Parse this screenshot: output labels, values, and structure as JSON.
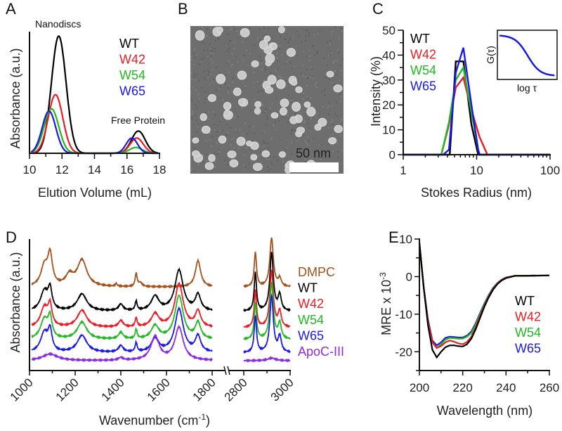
{
  "panel_letters": [
    "A",
    "B",
    "C",
    "D",
    "E"
  ],
  "micrograph": {
    "scale_bar_label": "50 nm"
  },
  "chart_data": [
    {
      "panel": "A",
      "type": "line",
      "xlabel": "Elution Volume (mL)",
      "ylabel": "Absorbance (a.u.)",
      "xlim": [
        10,
        18
      ],
      "ylim": [
        0,
        1.05
      ],
      "xticks": [
        10,
        12,
        14,
        16,
        18
      ],
      "annotations": [
        "Nanodiscs",
        "Free Protein"
      ],
      "legend_position": "top-right",
      "series": [
        {
          "name": "WT",
          "color": "#000000",
          "peaks": [
            [
              11.8,
              1.0,
              0.45
            ],
            [
              16.7,
              0.19,
              0.42
            ]
          ]
        },
        {
          "name": "W42",
          "color": "#ee1c24",
          "peaks": [
            [
              11.6,
              0.5,
              0.45
            ],
            [
              16.6,
              0.13,
              0.4
            ]
          ]
        },
        {
          "name": "W54",
          "color": "#22b922",
          "peaks": [
            [
              11.35,
              0.38,
              0.45
            ],
            [
              16.55,
              0.05,
              0.4
            ]
          ]
        },
        {
          "name": "W65",
          "color": "#1a1ae6",
          "peaks": [
            [
              11.2,
              0.36,
              0.42
            ],
            [
              16.3,
              0.13,
              0.35
            ]
          ]
        }
      ]
    },
    {
      "panel": "C",
      "type": "line",
      "xlabel": "Stokes Radius (nm)",
      "ylabel": "Intensity (%)",
      "xscale": "log",
      "xlim": [
        1,
        100
      ],
      "ylim": [
        0,
        50
      ],
      "xticks": [
        1,
        10,
        100
      ],
      "yticks": [
        0,
        10,
        20,
        30,
        40,
        50
      ],
      "legend_position": "top-left",
      "inset": {
        "ylabel": "G(τ)",
        "xlabel": "log τ",
        "color": "#1a1ae6"
      },
      "series": [
        {
          "name": "WT",
          "color": "#000000",
          "points": [
            [
              1,
              0
            ],
            [
              4.3,
              0
            ],
            [
              5.2,
              37.5
            ],
            [
              6.6,
              37.5
            ],
            [
              8.5,
              12
            ],
            [
              10.5,
              0
            ],
            [
              100,
              0
            ]
          ]
        },
        {
          "name": "W42",
          "color": "#ee1c24",
          "points": [
            [
              1,
              0
            ],
            [
              3.3,
              0
            ],
            [
              4.2,
              12
            ],
            [
              5.2,
              27
            ],
            [
              6.6,
              31
            ],
            [
              8.5,
              18
            ],
            [
              11,
              7
            ],
            [
              14,
              0
            ],
            [
              100,
              0
            ]
          ]
        },
        {
          "name": "W54",
          "color": "#22b922",
          "points": [
            [
              1,
              0
            ],
            [
              3.3,
              0
            ],
            [
              4.2,
              13
            ],
            [
              5.2,
              30
            ],
            [
              6.6,
              35
            ],
            [
              8.5,
              17
            ],
            [
              10.5,
              2
            ],
            [
              11,
              0
            ],
            [
              100,
              0
            ]
          ]
        },
        {
          "name": "W65",
          "color": "#1a1ae6",
          "points": [
            [
              1,
              0
            ],
            [
              3.5,
              0
            ],
            [
              4.2,
              2
            ],
            [
              5.2,
              33
            ],
            [
              6.6,
              43
            ],
            [
              8.5,
              20
            ],
            [
              10.5,
              2
            ],
            [
              11,
              0
            ],
            [
              100,
              0
            ]
          ]
        }
      ]
    },
    {
      "panel": "D",
      "type": "line",
      "xlabel": "Wavenumber (cm",
      "xlabel_sup": "-1",
      "xlabel_end": ")",
      "ylabel": "Absorbance (a.u.)",
      "xlim_segments": [
        [
          1000,
          1800
        ],
        [
          2800,
          3000
        ]
      ],
      "ylim": [
        0,
        10
      ],
      "xticks": [
        1000,
        1200,
        1400,
        1600,
        1800,
        2800,
        3000
      ],
      "legend_position": "right",
      "series": [
        {
          "name": "DMPC",
          "color": "#a4521e",
          "offset": 6.35,
          "peaks": [
            [
              1065,
              1.5,
              18
            ],
            [
              1090,
              2.3,
              12
            ],
            [
              1175,
              0.8,
              20
            ],
            [
              1230,
              2.0,
              25
            ],
            [
              1380,
              0.2,
              5
            ],
            [
              1467,
              1.0,
              5
            ],
            [
              1485,
              0.3,
              10
            ],
            [
              1738,
              2.0,
              14
            ],
            [
              2850,
              2.6,
              6
            ],
            [
              2920,
              3.7,
              9
            ],
            [
              2955,
              0.6,
              8
            ]
          ]
        },
        {
          "name": "WT",
          "color": "#000000",
          "offset": 4.5,
          "peaks": [
            [
              1065,
              1.5,
              20
            ],
            [
              1090,
              1.5,
              10
            ],
            [
              1230,
              1.3,
              25
            ],
            [
              1400,
              0.5,
              12
            ],
            [
              1467,
              0.7,
              5
            ],
            [
              1550,
              1.1,
              20
            ],
            [
              1655,
              3.1,
              22
            ],
            [
              1738,
              1.2,
              14
            ],
            [
              2850,
              2.9,
              6
            ],
            [
              2920,
              4.4,
              9
            ],
            [
              2955,
              1.2,
              8
            ]
          ]
        },
        {
          "name": "W42",
          "color": "#ee1c24",
          "offset": 3.25,
          "peaks": [
            [
              1065,
              1.5,
              20
            ],
            [
              1090,
              1.5,
              10
            ],
            [
              1230,
              1.3,
              25
            ],
            [
              1400,
              0.5,
              12
            ],
            [
              1467,
              0.7,
              5
            ],
            [
              1550,
              1.0,
              20
            ],
            [
              1655,
              3.3,
              22
            ],
            [
              1738,
              1.2,
              14
            ],
            [
              2850,
              2.8,
              6
            ],
            [
              2920,
              4.3,
              9
            ],
            [
              2955,
              1.2,
              8
            ]
          ]
        },
        {
          "name": "W54",
          "color": "#22b922",
          "offset": 2.35,
          "peaks": [
            [
              1065,
              1.5,
              20
            ],
            [
              1090,
              1.5,
              10
            ],
            [
              1230,
              1.3,
              25
            ],
            [
              1400,
              0.5,
              12
            ],
            [
              1467,
              0.7,
              5
            ],
            [
              1550,
              1.0,
              20
            ],
            [
              1655,
              3.3,
              22
            ],
            [
              1738,
              1.2,
              14
            ],
            [
              2850,
              2.8,
              6
            ],
            [
              2920,
              4.3,
              9
            ],
            [
              2955,
              1.2,
              8
            ]
          ]
        },
        {
          "name": "W65",
          "color": "#1a1ae6",
          "offset": 1.35,
          "peaks": [
            [
              1065,
              1.5,
              20
            ],
            [
              1090,
              1.5,
              10
            ],
            [
              1230,
              1.3,
              25
            ],
            [
              1400,
              0.5,
              12
            ],
            [
              1467,
              0.7,
              5
            ],
            [
              1550,
              1.0,
              20
            ],
            [
              1655,
              3.3,
              22
            ],
            [
              1738,
              1.2,
              14
            ],
            [
              2850,
              2.8,
              6
            ],
            [
              2920,
              4.3,
              9
            ],
            [
              2955,
              1.2,
              8
            ]
          ]
        },
        {
          "name": "ApoC-III",
          "color": "#8c2be6",
          "offset": 0.75,
          "peaks": [
            [
              1090,
              0.5,
              40
            ],
            [
              1400,
              0.2,
              12
            ],
            [
              1550,
              1.8,
              22
            ],
            [
              1655,
              2.5,
              22
            ],
            [
              2920,
              0.2,
              20
            ]
          ]
        }
      ]
    },
    {
      "panel": "E",
      "type": "line",
      "xlabel": "Wavelength (nm)",
      "ylabel": "MRE x 10",
      "ylabel_sup": "-3",
      "xlim": [
        200,
        260
      ],
      "ylim": [
        -25,
        10
      ],
      "xticks": [
        200,
        220,
        240,
        260
      ],
      "yticks": [
        10,
        0,
        -10,
        -20
      ],
      "legend_position": "right",
      "series": [
        {
          "name": "WT",
          "color": "#000000",
          "points": [
            [
              200,
              9
            ],
            [
              202,
              -3
            ],
            [
              204,
              -13
            ],
            [
              206,
              -19.5
            ],
            [
              208,
              -21.5
            ],
            [
              210,
              -20
            ],
            [
              212,
              -18.8
            ],
            [
              214,
              -18.3
            ],
            [
              216,
              -18.3
            ],
            [
              218,
              -18.5
            ],
            [
              220,
              -18.6
            ],
            [
              222,
              -18
            ],
            [
              224,
              -16.5
            ],
            [
              226,
              -14
            ],
            [
              228,
              -11
            ],
            [
              230,
              -8
            ],
            [
              232,
              -5.5
            ],
            [
              234,
              -3.5
            ],
            [
              236,
              -2
            ],
            [
              238,
              -1
            ],
            [
              240,
              -0.4
            ],
            [
              244,
              0.2
            ],
            [
              260,
              0.3
            ]
          ]
        },
        {
          "name": "W42",
          "color": "#ee1c24",
          "points": [
            [
              200,
              9
            ],
            [
              202,
              -3
            ],
            [
              204,
              -12
            ],
            [
              206,
              -17.5
            ],
            [
              208,
              -19
            ],
            [
              210,
              -18.5
            ],
            [
              212,
              -17.5
            ],
            [
              214,
              -17
            ],
            [
              216,
              -17.3
            ],
            [
              218,
              -17.8
            ],
            [
              220,
              -18
            ],
            [
              222,
              -17.4
            ],
            [
              224,
              -16
            ],
            [
              226,
              -13.5
            ],
            [
              228,
              -10.5
            ],
            [
              230,
              -7.8
            ],
            [
              232,
              -5.3
            ],
            [
              234,
              -3.3
            ],
            [
              236,
              -1.9
            ],
            [
              238,
              -0.9
            ],
            [
              240,
              -0.3
            ],
            [
              244,
              0.2
            ],
            [
              260,
              0.3
            ]
          ]
        },
        {
          "name": "W54",
          "color": "#22b922",
          "points": [
            [
              200,
              9
            ],
            [
              202,
              -3
            ],
            [
              204,
              -12
            ],
            [
              206,
              -17.5
            ],
            [
              208,
              -19
            ],
            [
              210,
              -18
            ],
            [
              212,
              -16.8
            ],
            [
              214,
              -16.3
            ],
            [
              216,
              -16.4
            ],
            [
              218,
              -16.5
            ],
            [
              220,
              -16.5
            ],
            [
              222,
              -16
            ],
            [
              224,
              -15
            ],
            [
              226,
              -12.8
            ],
            [
              228,
              -10
            ],
            [
              230,
              -7.5
            ],
            [
              232,
              -5.1
            ],
            [
              234,
              -3.2
            ],
            [
              236,
              -1.8
            ],
            [
              238,
              -0.9
            ],
            [
              240,
              -0.3
            ],
            [
              244,
              0.2
            ],
            [
              260,
              0.3
            ]
          ]
        },
        {
          "name": "W65",
          "color": "#1a1ae6",
          "points": [
            [
              200,
              9
            ],
            [
              202,
              -3
            ],
            [
              204,
              -11.5
            ],
            [
              206,
              -17
            ],
            [
              208,
              -18.3
            ],
            [
              210,
              -17.5
            ],
            [
              212,
              -16.3
            ],
            [
              214,
              -16
            ],
            [
              216,
              -16.1
            ],
            [
              218,
              -16.2
            ],
            [
              220,
              -16.2
            ],
            [
              222,
              -15.7
            ],
            [
              224,
              -14.6
            ],
            [
              226,
              -12.4
            ],
            [
              228,
              -9.7
            ],
            [
              230,
              -7.2
            ],
            [
              232,
              -4.9
            ],
            [
              234,
              -3
            ],
            [
              236,
              -1.7
            ],
            [
              238,
              -0.8
            ],
            [
              240,
              -0.2
            ],
            [
              244,
              0.2
            ],
            [
              260,
              0.3
            ]
          ]
        }
      ]
    }
  ]
}
